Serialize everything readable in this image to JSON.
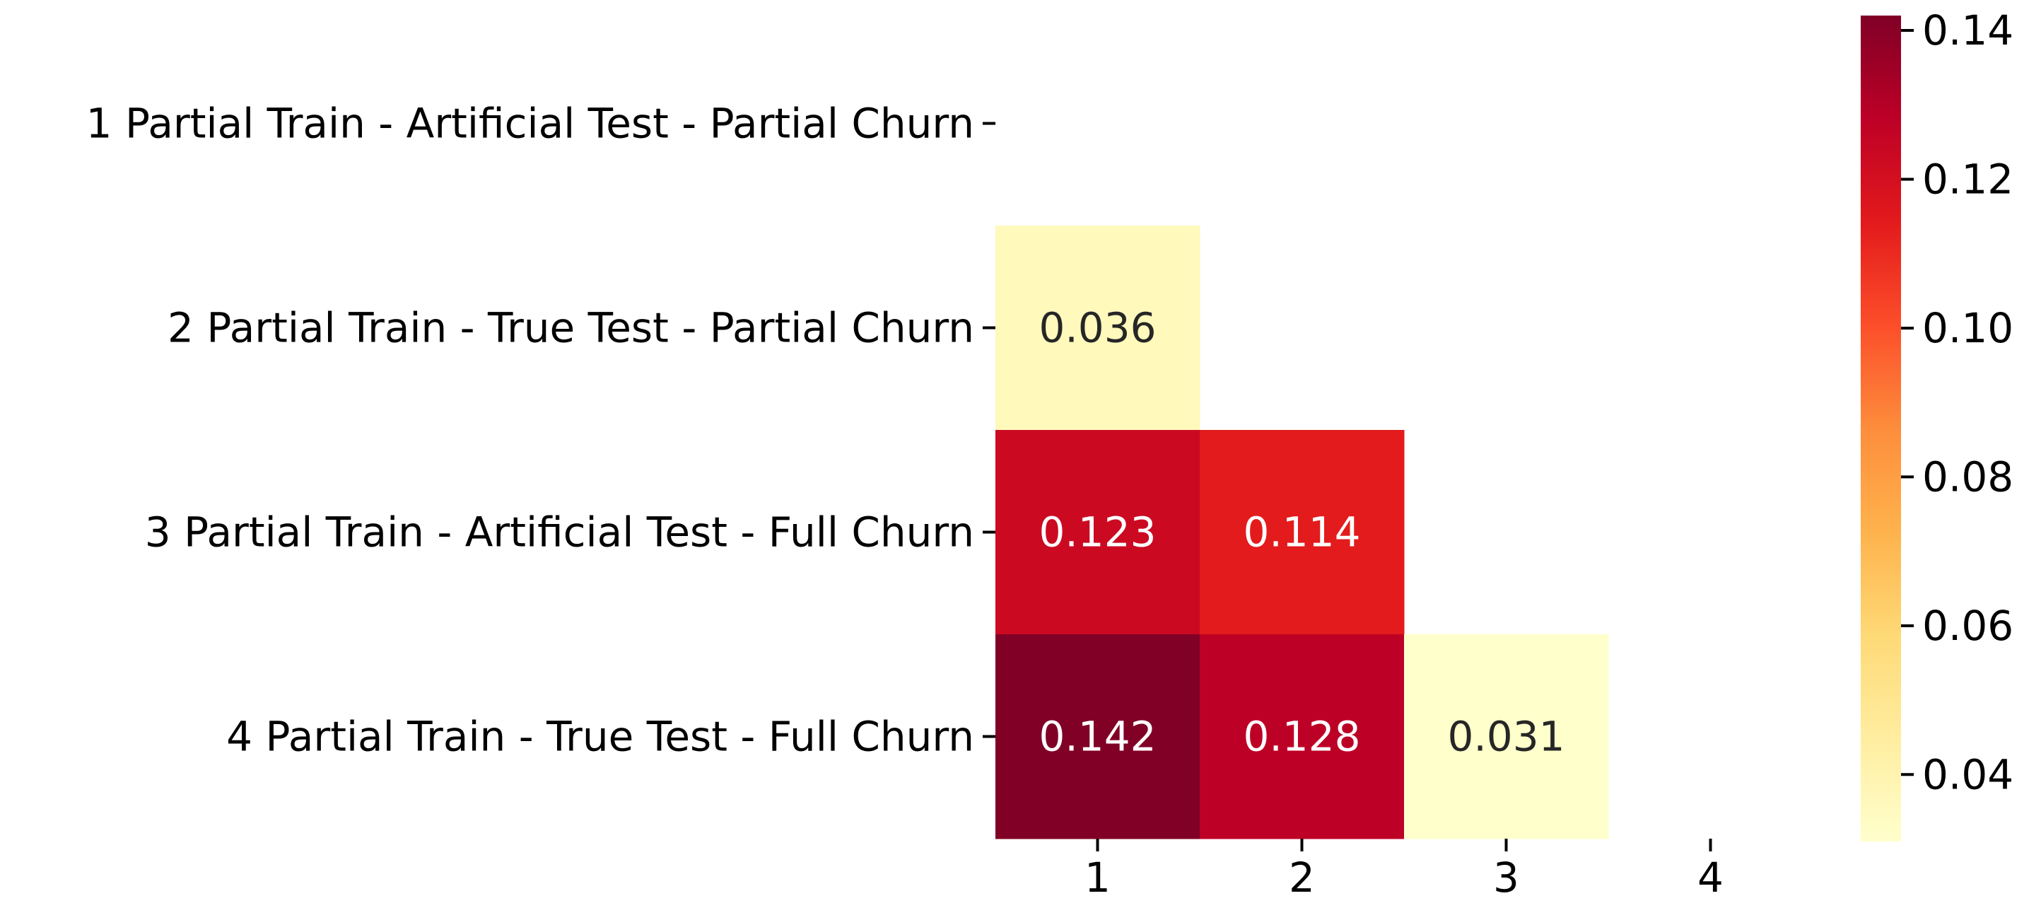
{
  "chart_data": {
    "type": "heatmap",
    "title": "",
    "xlabel": "",
    "ylabel": "",
    "row_labels": [
      "1 Partial Train - Artificial Test - Partial Churn",
      "2 Partial Train - True Test - Partial Churn",
      "3 Partial Train - Artificial Test - Full Churn",
      "4 Partial Train - True Test - Full Churn"
    ],
    "col_labels": [
      "1",
      "2",
      "3",
      "4"
    ],
    "values": [
      [
        null,
        null,
        null,
        null
      ],
      [
        0.036,
        null,
        null,
        null
      ],
      [
        0.123,
        0.114,
        null,
        null
      ],
      [
        0.142,
        0.128,
        0.031,
        null
      ]
    ],
    "value_labels": [
      [
        null,
        null,
        null,
        null
      ],
      [
        "0.036",
        null,
        null,
        null
      ],
      [
        "0.123",
        "0.114",
        null,
        null
      ],
      [
        "0.142",
        "0.128",
        "0.031",
        null
      ]
    ],
    "mask": "upper triangle including diagonal",
    "colormap": "YlOrRd",
    "colormap_stops": [
      "#ffffcc",
      "#ffeda0",
      "#fed976",
      "#feb24c",
      "#fd8d3c",
      "#fc4e2a",
      "#e31a1c",
      "#bd0026",
      "#800026"
    ],
    "color_range": [
      0.031,
      0.142
    ],
    "colorbar": {
      "ticks": [
        0.04,
        0.06,
        0.08,
        0.1,
        0.12,
        0.14
      ],
      "tick_labels": [
        "0.04",
        "0.06",
        "0.08",
        "0.10",
        "0.12",
        "0.14"
      ],
      "placement": "right"
    },
    "annotation_colors": {
      "light_cells": "#262626",
      "dark_cells": "#ffffff"
    }
  }
}
